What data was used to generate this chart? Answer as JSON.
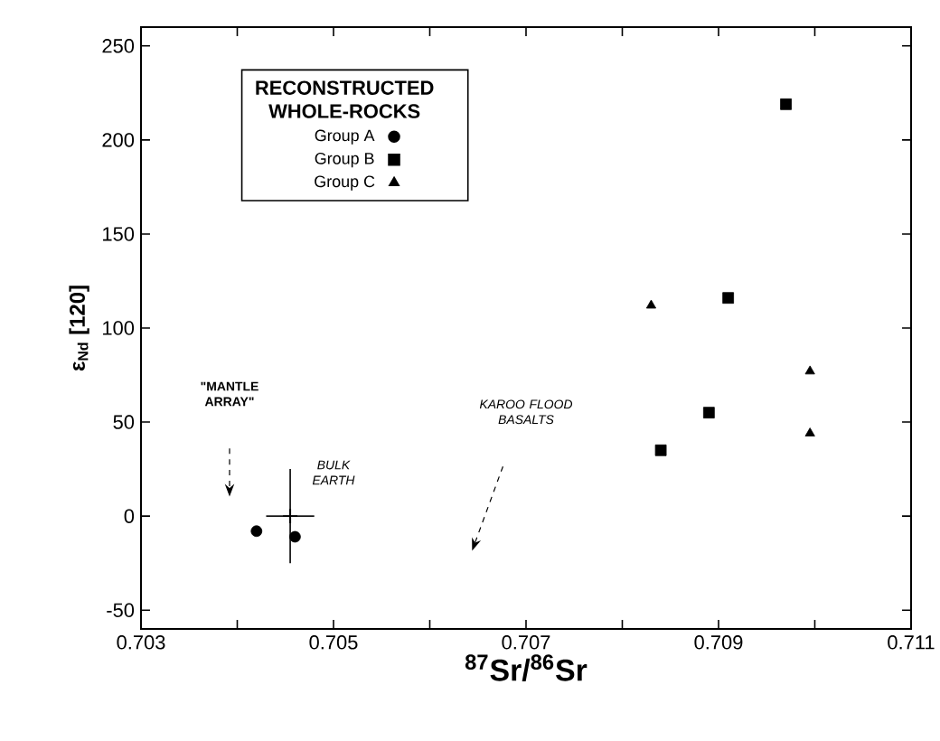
{
  "chart_data": {
    "type": "scatter",
    "xlabel": "$^{87}$Sr/$^{86}$Sr",
    "ylabel": "ε$_{Nd}$ [120]",
    "legend_title": "RECONSTRUCTED WHOLE-ROCKS",
    "series": [
      {
        "name": "Group A",
        "color": "#000000",
        "marker": "circle",
        "x": [
          0.7042,
          0.7046
        ],
        "values": [
          -8,
          -11
        ]
      },
      {
        "name": "Group B",
        "color": "#000000",
        "marker": "square",
        "x": [
          0.7084,
          0.7089,
          0.7091,
          0.7097
        ],
        "values": [
          35,
          55,
          116,
          219
        ]
      },
      {
        "name": "Group C",
        "color": "#000000",
        "marker": "triangle",
        "x": [
          0.7083,
          0.70995,
          0.70995
        ],
        "values": [
          112,
          77,
          44
        ]
      },
      {
        "name": "BULK EARTH",
        "color": "#000000",
        "marker": "cross",
        "x": [
          0.70455
        ],
        "values": [
          0
        ],
        "errors": [
          25
        ],
        "xerrors": [
          0.00025
        ]
      }
    ],
    "annotations": [
      "\"MANTLE ARRAY\"",
      "KAROO FLOOD BASALTS"
    ],
    "xlim": [
      0.703,
      0.711
    ],
    "ylim": [
      -60,
      260
    ],
    "xticks": [
      0.703,
      {
        "value": 0.704,
        "label": null
      },
      0.705,
      {
        "value": 0.706,
        "label": null
      },
      0.707,
      {
        "value": 0.708,
        "label": null
      },
      0.709,
      {
        "value": 0.71,
        "label": null
      },
      0.711
    ],
    "yticks": [
      -50,
      0,
      50,
      100,
      150,
      200,
      250
    ],
    "grid": false,
    "legend": "top left"
  }
}
